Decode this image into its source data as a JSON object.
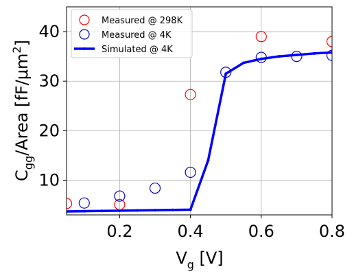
{
  "chart_data": {
    "type": "scatter",
    "xlabel": {
      "main": "V",
      "sub": "g",
      "rest": " [V]"
    },
    "ylabel": {
      "main": "C",
      "sub": "gg",
      "mid": "/Area  [fF/μm",
      "sup": "2",
      "end": "]"
    },
    "xlim": [
      0.05,
      0.8
    ],
    "ylim": [
      3,
      45
    ],
    "xticks": [
      0.2,
      0.4,
      0.6,
      0.8
    ],
    "xtick_labels": [
      "0.2",
      "0.4",
      "0.6",
      "0.8"
    ],
    "yticks": [
      10,
      20,
      30,
      40
    ],
    "ytick_labels": [
      "10",
      "20",
      "30",
      "40"
    ],
    "grid": true,
    "legend_position": "top-left",
    "series": [
      {
        "name": "Measured @ 298K",
        "kind": "open-circle",
        "color": "#ff0000",
        "x": [
          0.05,
          0.2,
          0.4,
          0.6,
          0.8
        ],
        "y": [
          5.3,
          5.1,
          27.3,
          39.0,
          38.0
        ]
      },
      {
        "name": "Measured @ 4K",
        "kind": "open-circle",
        "color": "#0000cc",
        "x": [
          0.1,
          0.2,
          0.3,
          0.4,
          0.5,
          0.6,
          0.7,
          0.8
        ],
        "y": [
          5.4,
          6.8,
          8.4,
          11.6,
          31.8,
          34.8,
          35.0,
          35.2
        ]
      },
      {
        "name": "Simulated @ 4K",
        "kind": "line",
        "color": "#0000ff",
        "x": [
          0.05,
          0.1,
          0.15,
          0.2,
          0.25,
          0.3,
          0.35,
          0.4,
          0.45,
          0.5,
          0.55,
          0.6,
          0.65,
          0.7,
          0.75,
          0.8
        ],
        "y": [
          3.7,
          3.75,
          3.8,
          3.85,
          3.9,
          3.95,
          4.0,
          4.05,
          14.0,
          31.5,
          33.7,
          34.5,
          35.0,
          35.3,
          35.6,
          35.8
        ]
      }
    ]
  }
}
